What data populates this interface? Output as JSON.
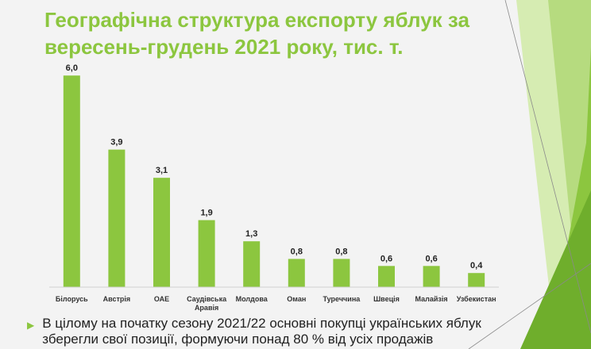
{
  "slide": {
    "title": "Географічна структура експорту яблук за вересень-грудень 2021 року, тис. т.",
    "bullet": "В цілому на початку сезону 2021/22 основні покупці українських яблук зберегли свої позиції, формуючи понад 80 % від усіх продажів",
    "bullet_icon": "triangle-right-icon",
    "accent_color": "#8cc63f"
  },
  "chart_data": {
    "type": "bar",
    "title": "",
    "xlabel": "",
    "ylabel": "",
    "ylim": [
      0,
      6.5
    ],
    "grid": false,
    "categories": [
      "Білорусь",
      "Австрія",
      "ОАЕ",
      "Саудівська Аравія",
      "Молдова",
      "Оман",
      "Туреччина",
      "Швеція",
      "Малайзія",
      "Узбекистан"
    ],
    "category_lines": [
      [
        "Білорусь"
      ],
      [
        "Австрія"
      ],
      [
        "ОАЕ"
      ],
      [
        "Саудівська",
        "Аравія"
      ],
      [
        "Молдова"
      ],
      [
        "Оман"
      ],
      [
        "Туреччина"
      ],
      [
        "Швеція"
      ],
      [
        "Малайзія"
      ],
      [
        "Узбекистан"
      ]
    ],
    "series": [
      {
        "values": [
          6.0,
          3.9,
          3.1,
          1.9,
          1.3,
          0.8,
          0.8,
          0.6,
          0.6,
          0.4
        ],
        "labels": [
          "6,0",
          "3,9",
          "3,1",
          "1,9",
          "1,3",
          "0,8",
          "0,8",
          "0,6",
          "0,6",
          "0,4"
        ]
      }
    ],
    "bar_color": "#8cc63f"
  }
}
